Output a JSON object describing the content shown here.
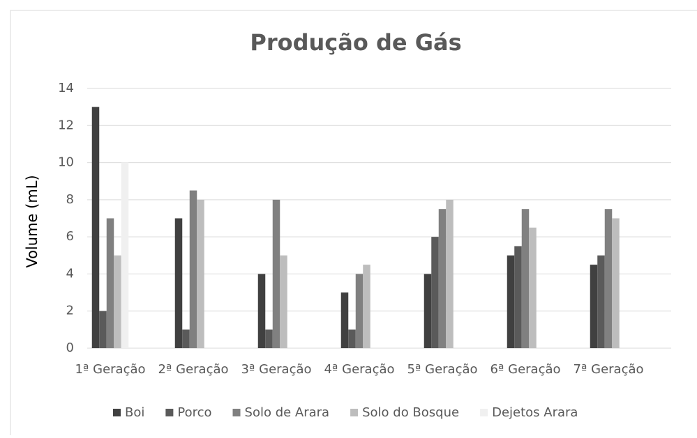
{
  "chart_data": {
    "type": "bar",
    "title": "Produção de Gás",
    "y_label": "Volume (mL)",
    "categories": [
      "1ª Geração",
      "2ª Geração",
      "3ª Geração",
      "4ª Geração",
      "5ª Geração",
      "6ª Geração",
      "7ª Geração"
    ],
    "series": [
      {
        "name": "Boi",
        "color": "#404040",
        "values": [
          13,
          7,
          4,
          3,
          4,
          5,
          4.5
        ]
      },
      {
        "name": "Porco",
        "color": "#5a5a5a",
        "values": [
          2,
          1,
          1,
          1,
          6,
          5.5,
          5
        ]
      },
      {
        "name": "Solo de Arara",
        "color": "#808080",
        "values": [
          7,
          8.5,
          8,
          4,
          7.5,
          7.5,
          7.5
        ]
      },
      {
        "name": "Solo do Bosque",
        "color": "#bdbdbd",
        "values": [
          5,
          8,
          5,
          4.5,
          8,
          6.5,
          7
        ]
      },
      {
        "name": "Dejetos Arara",
        "color": "#f0f0f0",
        "values": [
          10,
          0,
          0,
          0,
          0,
          0,
          0
        ]
      }
    ],
    "ylim": [
      0,
      14
    ],
    "yticks": [
      0,
      2,
      4,
      6,
      8,
      10,
      12,
      14
    ],
    "grid": true,
    "legend": "bottom"
  }
}
